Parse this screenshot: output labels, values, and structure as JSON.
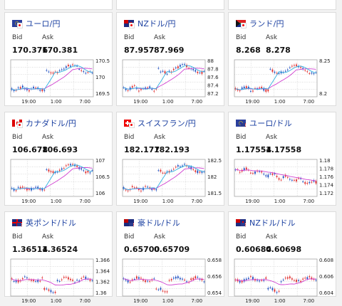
{
  "labels": {
    "bid": "Bid",
    "ask": "Ask"
  },
  "x_ticks": [
    "19:00",
    "1:00",
    "7:00"
  ],
  "cards": [
    {
      "pair": "ユーロ/円",
      "flag": "eu-jp",
      "bid": "170.376",
      "ask": "170.381",
      "y_ticks": [
        "170.5",
        "170",
        "169.5"
      ],
      "shape": "jump"
    },
    {
      "pair": "NZドル/円",
      "flag": "nz-jp",
      "bid": "87.957",
      "ask": "87.969",
      "y_ticks": [
        "88",
        "87.8",
        "87.6",
        "87.4",
        "87.2"
      ],
      "shape": "jump"
    },
    {
      "pair": "ランド/円",
      "flag": "za-jp",
      "bid": "8.268",
      "ask": "8.278",
      "y_ticks": [
        "8.25",
        "8.2"
      ],
      "shape": "jump"
    },
    {
      "pair": "カナダドル/円",
      "flag": "ca-jp",
      "bid": "106.678",
      "ask": "106.693",
      "y_ticks": [
        "107",
        "106.5",
        "106"
      ],
      "shape": "jump"
    },
    {
      "pair": "スイスフラン/円",
      "flag": "ch-jp",
      "bid": "182.177",
      "ask": "182.193",
      "y_ticks": [
        "182.5",
        "182",
        "181.5"
      ],
      "shape": "jump"
    },
    {
      "pair": "ユーロ/ドル",
      "flag": "eu-us",
      "bid": "1.17554",
      "ask": "1.17558",
      "y_ticks": [
        "1.18",
        "1.178",
        "1.176",
        "1.174",
        "1.172"
      ],
      "shape": "drop"
    },
    {
      "pair": "英ポンド/ドル",
      "flag": "gb-us",
      "bid": "1.36514",
      "ask": "1.36524",
      "y_ticks": [
        "1.366",
        "1.364",
        "1.362",
        "1.36"
      ],
      "shape": "dip"
    },
    {
      "pair": "豪ドル/ドル",
      "flag": "au-us",
      "bid": "0.65700",
      "ask": "0.65709",
      "y_ticks": [
        "0.658",
        "0.656",
        "0.654"
      ],
      "shape": "dip"
    },
    {
      "pair": "NZドル/ドル",
      "flag": "nz-us",
      "bid": "0.60684",
      "ask": "0.60698",
      "y_ticks": [
        "0.608",
        "0.606",
        "0.604"
      ],
      "shape": "dip"
    }
  ],
  "colors": {
    "up": "#e03030",
    "down": "#2050c0",
    "ma_pink": "#d040d0",
    "ma_cyan": "#30b0e0",
    "link": "#1a3fa0"
  }
}
